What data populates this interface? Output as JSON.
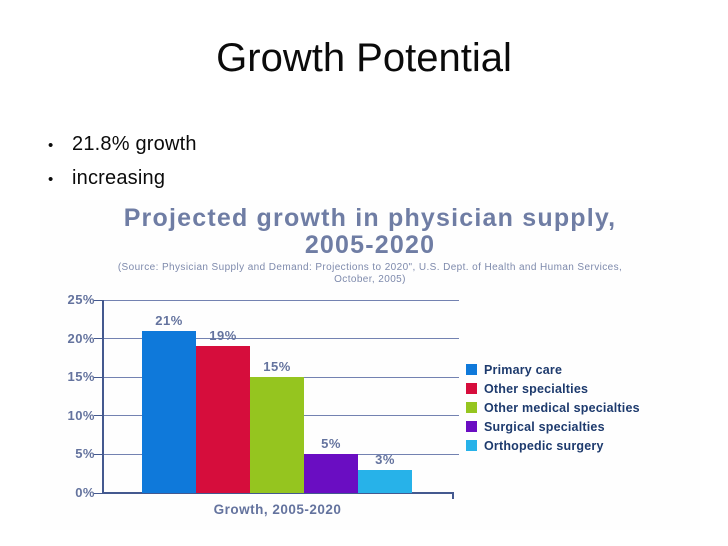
{
  "slide": {
    "title": "Growth Potential",
    "bullet_char": "•",
    "bullets": [
      "21.8% growth",
      "increasing"
    ]
  },
  "chart": {
    "title_line1": "Projected growth in physician supply,",
    "title_line2": "2005-2020",
    "source_line1": "(Source: Physician Supply and Demand: Projections to 2020\", U.S. Dept. of Health and Human Services,",
    "source_line2": "October, 2005)",
    "x_axis_label": "Growth, 2005-2020",
    "colors": {
      "chart_title_text": "#6f7da4",
      "source_text": "#7e8aac",
      "axis": "#44598f",
      "gridline": "#5a6ca3",
      "tick_label_text": "#64739e",
      "legend_text": "#1d3a6d"
    }
  },
  "chart_data": {
    "type": "bar",
    "title": "Projected growth in physician supply, 2005-2020",
    "source": "(Source: Physician Supply and Demand: Projections to 2020\", U.S. Dept. of Health and Human Services, October, 2005)",
    "xlabel": "Growth, 2005-2020",
    "ylabel": "",
    "categories": [
      "Primary care",
      "Other specialties",
      "Other medical specialties",
      "Surgical specialties",
      "Orthopedic surgery"
    ],
    "values": [
      21,
      19,
      15,
      5,
      3
    ],
    "value_labels": [
      "21%",
      "19%",
      "15%",
      "5%",
      "3%"
    ],
    "bar_colors": [
      "#0f79da",
      "#d60d3c",
      "#95c51f",
      "#6a0dc2",
      "#27b2e9"
    ],
    "y_ticks": [
      0,
      5,
      10,
      15,
      20,
      25
    ],
    "y_tick_labels": [
      "0%",
      "5%",
      "10%",
      "15%",
      "20%",
      "25%"
    ],
    "ylim": [
      0,
      25
    ],
    "grid": true,
    "legend_position": "right"
  }
}
